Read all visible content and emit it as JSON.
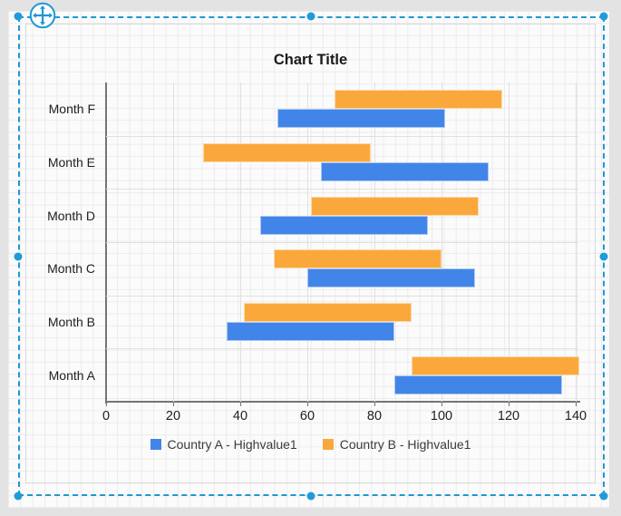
{
  "designer": {
    "selection_color": "#2097D4",
    "icons": {
      "move_tool": "four-way-move-arrow"
    }
  },
  "chart_data": {
    "type": "bar",
    "subtype": "range-bar",
    "orientation": "horizontal",
    "title": "Chart Title",
    "xlabel": "",
    "ylabel": "",
    "xlim": [
      0,
      140
    ],
    "xticks": [
      0,
      20,
      40,
      60,
      80,
      100,
      120,
      140
    ],
    "grid": "on",
    "legend_position": "bottom",
    "categories_top_to_bottom": [
      "Month F",
      "Month E",
      "Month D",
      "Month C",
      "Month B",
      "Month A"
    ],
    "series": [
      {
        "name": "Country A - Highvalue1",
        "color": "#4285E8",
        "row_in_group": "bottom",
        "ranges_low_high": [
          [
            51,
            101
          ],
          [
            64,
            114
          ],
          [
            46,
            96
          ],
          [
            60,
            110
          ],
          [
            36,
            86
          ],
          [
            86,
            136
          ]
        ]
      },
      {
        "name": "Country B - Highvalue1",
        "color": "#FAA83C",
        "row_in_group": "top",
        "ranges_low_high": [
          [
            68,
            118
          ],
          [
            29,
            79
          ],
          [
            61,
            111
          ],
          [
            50,
            100
          ],
          [
            41,
            91
          ],
          [
            91,
            141
          ]
        ]
      }
    ]
  }
}
